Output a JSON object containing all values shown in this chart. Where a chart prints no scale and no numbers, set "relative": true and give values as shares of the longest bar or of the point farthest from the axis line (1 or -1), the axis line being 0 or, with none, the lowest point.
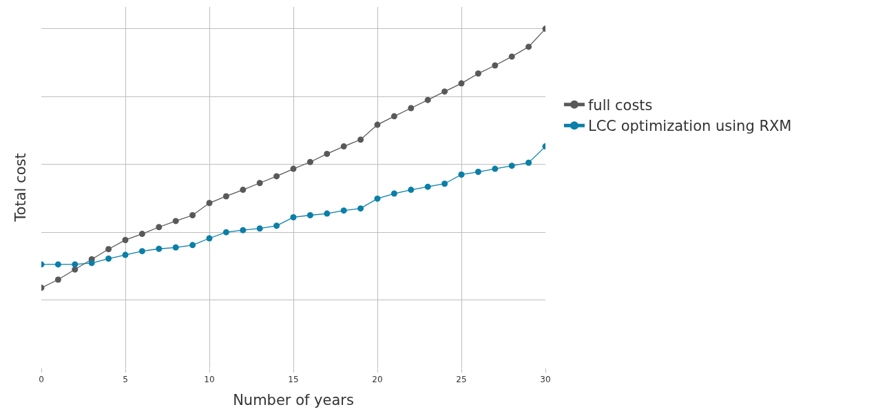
{
  "chart_data": {
    "type": "line",
    "xlabel": "Number of years",
    "ylabel": "Total cost",
    "x": [
      0,
      1,
      2,
      3,
      4,
      5,
      6,
      7,
      8,
      9,
      10,
      11,
      12,
      13,
      14,
      15,
      16,
      17,
      18,
      19,
      20,
      21,
      22,
      23,
      24,
      25,
      26,
      27,
      28,
      29,
      30
    ],
    "relative": true,
    "series": [
      {
        "name": "full costs",
        "color": "#595959",
        "values": [
          0.236,
          0.26,
          0.29,
          0.32,
          0.35,
          0.377,
          0.395,
          0.415,
          0.433,
          0.45,
          0.486,
          0.506,
          0.525,
          0.545,
          0.565,
          0.587,
          0.607,
          0.631,
          0.653,
          0.673,
          0.717,
          0.742,
          0.766,
          0.79,
          0.815,
          0.839,
          0.868,
          0.892,
          0.918,
          0.947,
          1
        ]
      },
      {
        "name": "LCC optimization using RXM",
        "color": "#0a7fa8",
        "values": [
          0.305,
          0.305,
          0.305,
          0.309,
          0.322,
          0.333,
          0.344,
          0.351,
          0.355,
          0.362,
          0.382,
          0.4,
          0.406,
          0.411,
          0.419,
          0.444,
          0.45,
          0.455,
          0.464,
          0.47,
          0.499,
          0.514,
          0.525,
          0.534,
          0.543,
          0.57,
          0.578,
          0.587,
          0.596,
          0.605,
          0.653
        ]
      }
    ],
    "xlim": [
      0,
      30
    ],
    "xticks": [
      0,
      5,
      10,
      15,
      20,
      25,
      30
    ],
    "grid": true,
    "legend": "right",
    "marker": "circle",
    "line_style": "solid"
  }
}
